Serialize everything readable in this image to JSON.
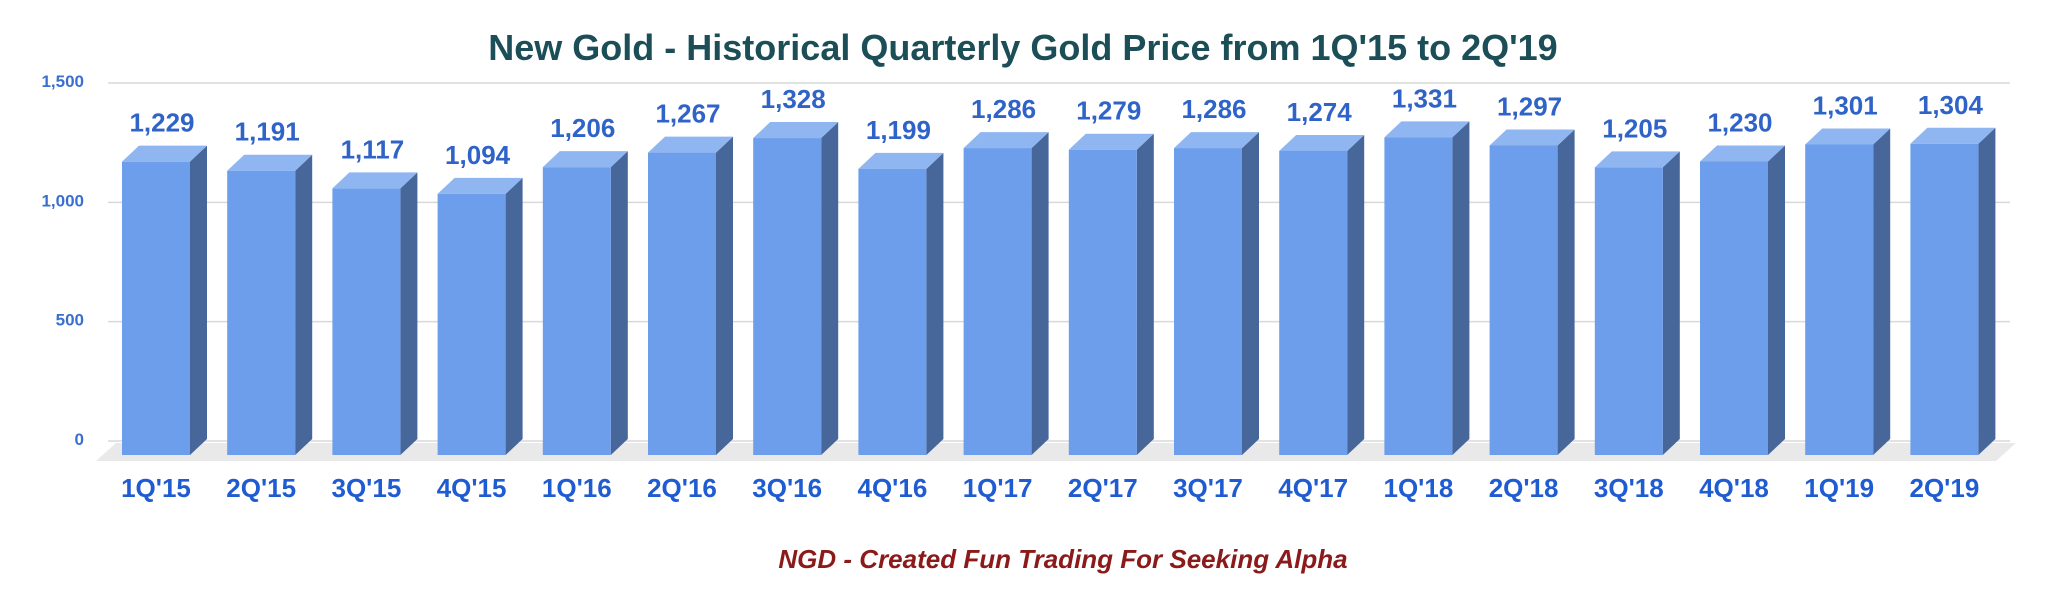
{
  "colors": {
    "title": "#1b4e57",
    "axis_text": "#3a6fd0",
    "category_text": "#1f5bd1",
    "data_label": "#2f63c7",
    "bar_front": "#6d9eeb",
    "bar_side": "#47669a",
    "bar_top": "#8fb6f1",
    "grid": "#d9d9d9",
    "floor": "#e9e9e9",
    "caption": "#8b1a1a"
  },
  "chart_data": {
    "type": "bar",
    "title": "New Gold - Historical Quarterly Gold Price from 1Q'15 to 2Q'19",
    "xlabel": "",
    "ylabel": "",
    "ylim": [
      0,
      1500
    ],
    "yticks": [
      0,
      500,
      1000,
      1500
    ],
    "ytick_labels": [
      "0",
      "500",
      "1,000",
      "1,500"
    ],
    "grid": true,
    "legend": "none",
    "style": "3d-columns",
    "categories": [
      "1Q'15",
      "2Q'15",
      "3Q'15",
      "4Q'15",
      "1Q'16",
      "2Q'16",
      "3Q'16",
      "4Q'16",
      "1Q'17",
      "2Q'17",
      "3Q'17",
      "4Q'17",
      "1Q'18",
      "2Q'18",
      "3Q'18",
      "4Q'18",
      "1Q'19",
      "2Q'19"
    ],
    "values": [
      1229,
      1191,
      1117,
      1094,
      1206,
      1267,
      1328,
      1199,
      1286,
      1279,
      1286,
      1274,
      1331,
      1297,
      1205,
      1230,
      1301,
      1304
    ],
    "value_labels": [
      "1,229",
      "1,191",
      "1,117",
      "1,094",
      "1,206",
      "1,267",
      "1,328",
      "1,199",
      "1,286",
      "1,279",
      "1,286",
      "1,274",
      "1,331",
      "1,297",
      "1,205",
      "1,230",
      "1,301",
      "1,304"
    ]
  },
  "caption": "NGD - Created  Fun Trading For Seeking Alpha"
}
